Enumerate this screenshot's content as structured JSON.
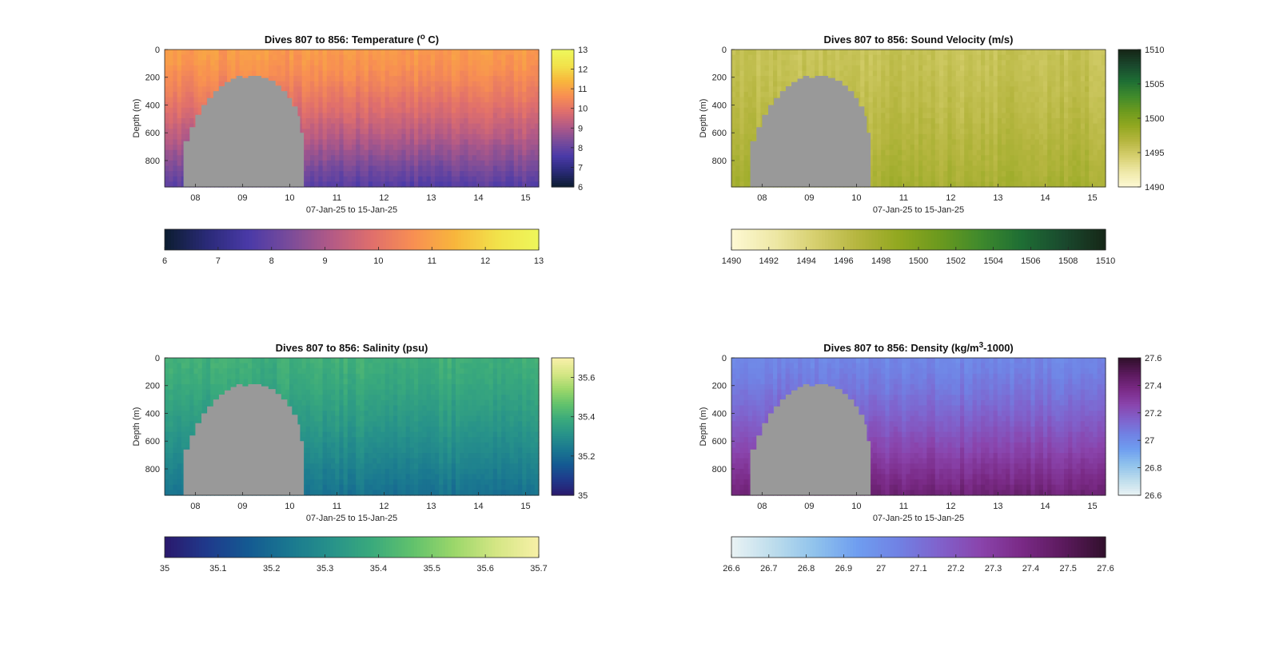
{
  "chart_data": [
    {
      "type": "heatmap",
      "title": "Dives 807 to 856: Temperature (",
      "title_sup": "o",
      "title_end": " C)",
      "xlabel": "07-Jan-25 to 15-Jan-25",
      "ylabel": "Depth (m)",
      "xticks": [
        "08",
        "09",
        "10",
        "11",
        "12",
        "13",
        "14",
        "15"
      ],
      "xlim": [
        7.35,
        15.28
      ],
      "yticks": [
        0,
        200,
        400,
        600,
        800
      ],
      "ylim": [
        0,
        990
      ],
      "colorbar": {
        "min": 6,
        "max": 13,
        "ticks": [
          6,
          7,
          8,
          9,
          10,
          11,
          12,
          13
        ]
      },
      "hcolorbar_ticks": [
        "6",
        "7",
        "8",
        "9",
        "10",
        "11",
        "12",
        "13"
      ],
      "colormap": [
        "#0d1d33",
        "#2a2a78",
        "#4a3aa8",
        "#7a4c9a",
        "#b35a86",
        "#e06f6c",
        "#f88f52",
        "#f8b63c",
        "#f2e14a",
        "#eef65a"
      ],
      "surface_value": 10.9,
      "deep_value": 7.8,
      "gap_color": "#999999"
    },
    {
      "type": "heatmap",
      "title": "Dives 807 to 856: Sound Velocity (m/s)",
      "xlabel": "07-Jan-25 to 15-Jan-25",
      "ylabel": "Depth (m)",
      "xticks": [
        "08",
        "09",
        "10",
        "11",
        "12",
        "13",
        "14",
        "15"
      ],
      "xlim": [
        7.35,
        15.28
      ],
      "yticks": [
        0,
        200,
        400,
        600,
        800
      ],
      "ylim": [
        0,
        990
      ],
      "colorbar": {
        "min": 1490,
        "max": 1510,
        "ticks": [
          1490,
          1495,
          1500,
          1505,
          1510
        ]
      },
      "hcolorbar_ticks": [
        "1490",
        "1492",
        "1494",
        "1496",
        "1498",
        "1500",
        "1502",
        "1504",
        "1506",
        "1508",
        "1510"
      ],
      "colormap": [
        "#fdf8d2",
        "#eee8a6",
        "#d6cf6e",
        "#b6b640",
        "#92a820",
        "#6c9a1e",
        "#3f8a2c",
        "#1e6e34",
        "#1a4a2e",
        "#162818"
      ],
      "surface_value": 1495.5,
      "deep_value": 1497.5,
      "gap_color": "#999999"
    },
    {
      "type": "heatmap",
      "title": "Dives 807 to 856: Salinity (psu)",
      "xlabel": "07-Jan-25 to 15-Jan-25",
      "ylabel": "Depth (m)",
      "xticks": [
        "08",
        "09",
        "10",
        "11",
        "12",
        "13",
        "14",
        "15"
      ],
      "xlim": [
        7.35,
        15.28
      ],
      "yticks": [
        0,
        200,
        400,
        600,
        800
      ],
      "ylim": [
        0,
        990
      ],
      "colorbar": {
        "min": 35,
        "max": 35.7,
        "ticks": [
          35,
          35.2,
          35.4,
          35.6
        ]
      },
      "hcolorbar_ticks": [
        "35",
        "35.1",
        "35.2",
        "35.3",
        "35.4",
        "35.5",
        "35.6",
        "35.7"
      ],
      "colormap": [
        "#2a1a6e",
        "#1f3a8c",
        "#145a92",
        "#1a7890",
        "#27928a",
        "#3aaa7c",
        "#62c26c",
        "#9cd76a",
        "#d4e684",
        "#f6f0a6"
      ],
      "surface_value": 35.4,
      "deep_value": 35.22,
      "gap_color": "#999999"
    },
    {
      "type": "heatmap",
      "title": "Dives 807 to 856: Density (kg/m",
      "title_sup": "3",
      "title_end": "-1000)",
      "xlabel": "07-Jan-25 to 15-Jan-25",
      "ylabel": "Depth (m)",
      "xticks": [
        "08",
        "09",
        "10",
        "11",
        "12",
        "13",
        "14",
        "15"
      ],
      "xlim": [
        7.35,
        15.28
      ],
      "yticks": [
        0,
        200,
        400,
        600,
        800
      ],
      "ylim": [
        0,
        990
      ],
      "colorbar": {
        "min": 26.6,
        "max": 27.6,
        "ticks": [
          26.6,
          26.8,
          27,
          27.2,
          27.4,
          27.6
        ]
      },
      "hcolorbar_ticks": [
        "26.6",
        "26.7",
        "26.8",
        "26.9",
        "27",
        "27.1",
        "27.2",
        "27.3",
        "27.4",
        "27.5",
        "27.6"
      ],
      "colormap": [
        "#e8f2f4",
        "#bcdcec",
        "#8fc2ec",
        "#6f9ef0",
        "#7082e4",
        "#8062cc",
        "#8a44ac",
        "#7a2a86",
        "#5c1a5e",
        "#33102e"
      ],
      "surface_value": 27.03,
      "deep_value": 27.42,
      "gap_color": "#999999"
    }
  ]
}
